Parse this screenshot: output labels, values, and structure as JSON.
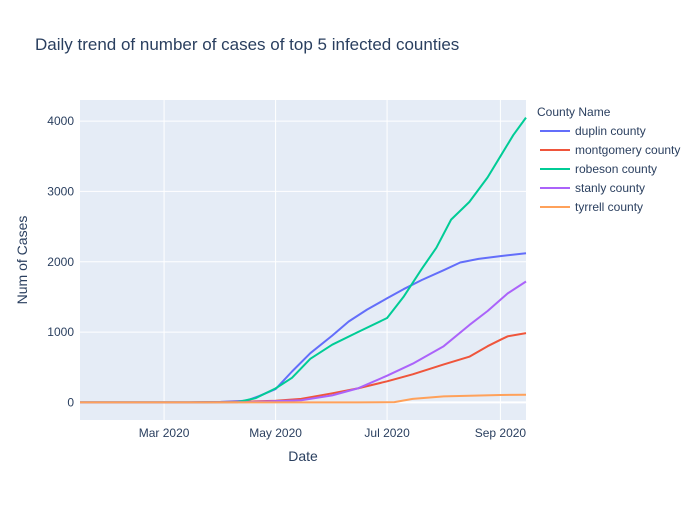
{
  "chart_data": {
    "type": "line",
    "title": "Daily trend of number of cases of top 5 infected counties",
    "xlabel": "Date",
    "ylabel": "Num of Cases",
    "legend_title": "County Name",
    "legend_position": "right",
    "grid": true,
    "xlim": [
      "2020-01-15",
      "2020-09-15"
    ],
    "ylim": [
      -250,
      4300
    ],
    "x_ticks": [
      {
        "value": "2020-03-01",
        "label": "Mar 2020"
      },
      {
        "value": "2020-05-01",
        "label": "May 2020"
      },
      {
        "value": "2020-07-01",
        "label": "Jul 2020"
      },
      {
        "value": "2020-09-01",
        "label": "Sep 2020"
      }
    ],
    "y_ticks": [
      {
        "value": 0,
        "label": "0"
      },
      {
        "value": 1000,
        "label": "1000"
      },
      {
        "value": 2000,
        "label": "2000"
      },
      {
        "value": 3000,
        "label": "3000"
      },
      {
        "value": 4000,
        "label": "4000"
      }
    ],
    "series": [
      {
        "name": "duplin county",
        "color": "#636efa",
        "points": [
          [
            "2020-01-15",
            0
          ],
          [
            "2020-03-15",
            0
          ],
          [
            "2020-04-01",
            8
          ],
          [
            "2020-04-15",
            25
          ],
          [
            "2020-04-22",
            90
          ],
          [
            "2020-05-01",
            190
          ],
          [
            "2020-05-10",
            440
          ],
          [
            "2020-05-20",
            700
          ],
          [
            "2020-06-01",
            950
          ],
          [
            "2020-06-10",
            1150
          ],
          [
            "2020-06-20",
            1320
          ],
          [
            "2020-07-01",
            1480
          ],
          [
            "2020-07-10",
            1610
          ],
          [
            "2020-07-20",
            1740
          ],
          [
            "2020-08-01",
            1880
          ],
          [
            "2020-08-10",
            1990
          ],
          [
            "2020-08-20",
            2040
          ],
          [
            "2020-09-01",
            2080
          ],
          [
            "2020-09-15",
            2120
          ]
        ]
      },
      {
        "name": "montgomery county",
        "color": "#ef553b",
        "points": [
          [
            "2020-01-15",
            0
          ],
          [
            "2020-03-15",
            0
          ],
          [
            "2020-04-15",
            10
          ],
          [
            "2020-05-01",
            25
          ],
          [
            "2020-05-15",
            50
          ],
          [
            "2020-06-01",
            130
          ],
          [
            "2020-06-15",
            200
          ],
          [
            "2020-07-01",
            300
          ],
          [
            "2020-07-15",
            400
          ],
          [
            "2020-08-01",
            540
          ],
          [
            "2020-08-15",
            650
          ],
          [
            "2020-08-25",
            800
          ],
          [
            "2020-09-01",
            890
          ],
          [
            "2020-09-05",
            940
          ],
          [
            "2020-09-15",
            985
          ]
        ]
      },
      {
        "name": "robeson county",
        "color": "#00cc96",
        "points": [
          [
            "2020-01-15",
            0
          ],
          [
            "2020-03-15",
            0
          ],
          [
            "2020-04-10",
            5
          ],
          [
            "2020-04-20",
            60
          ],
          [
            "2020-05-01",
            200
          ],
          [
            "2020-05-10",
            350
          ],
          [
            "2020-05-20",
            620
          ],
          [
            "2020-06-01",
            820
          ],
          [
            "2020-06-15",
            1000
          ],
          [
            "2020-07-01",
            1200
          ],
          [
            "2020-07-10",
            1500
          ],
          [
            "2020-07-20",
            1900
          ],
          [
            "2020-07-28",
            2200
          ],
          [
            "2020-08-05",
            2600
          ],
          [
            "2020-08-15",
            2850
          ],
          [
            "2020-08-25",
            3200
          ],
          [
            "2020-09-01",
            3500
          ],
          [
            "2020-09-08",
            3800
          ],
          [
            "2020-09-15",
            4050
          ]
        ]
      },
      {
        "name": "stanly county",
        "color": "#ab63fa",
        "points": [
          [
            "2020-01-15",
            0
          ],
          [
            "2020-03-15",
            0
          ],
          [
            "2020-04-15",
            5
          ],
          [
            "2020-05-15",
            30
          ],
          [
            "2020-06-01",
            100
          ],
          [
            "2020-06-15",
            200
          ],
          [
            "2020-07-01",
            380
          ],
          [
            "2020-07-15",
            550
          ],
          [
            "2020-08-01",
            800
          ],
          [
            "2020-08-15",
            1100
          ],
          [
            "2020-08-25",
            1300
          ],
          [
            "2020-09-05",
            1550
          ],
          [
            "2020-09-15",
            1720
          ]
        ]
      },
      {
        "name": "tyrrell county",
        "color": "#ffa15a",
        "points": [
          [
            "2020-01-15",
            0
          ],
          [
            "2020-06-15",
            0
          ],
          [
            "2020-07-05",
            5
          ],
          [
            "2020-07-15",
            50
          ],
          [
            "2020-08-01",
            85
          ],
          [
            "2020-09-01",
            105
          ],
          [
            "2020-09-15",
            110
          ]
        ]
      }
    ]
  }
}
